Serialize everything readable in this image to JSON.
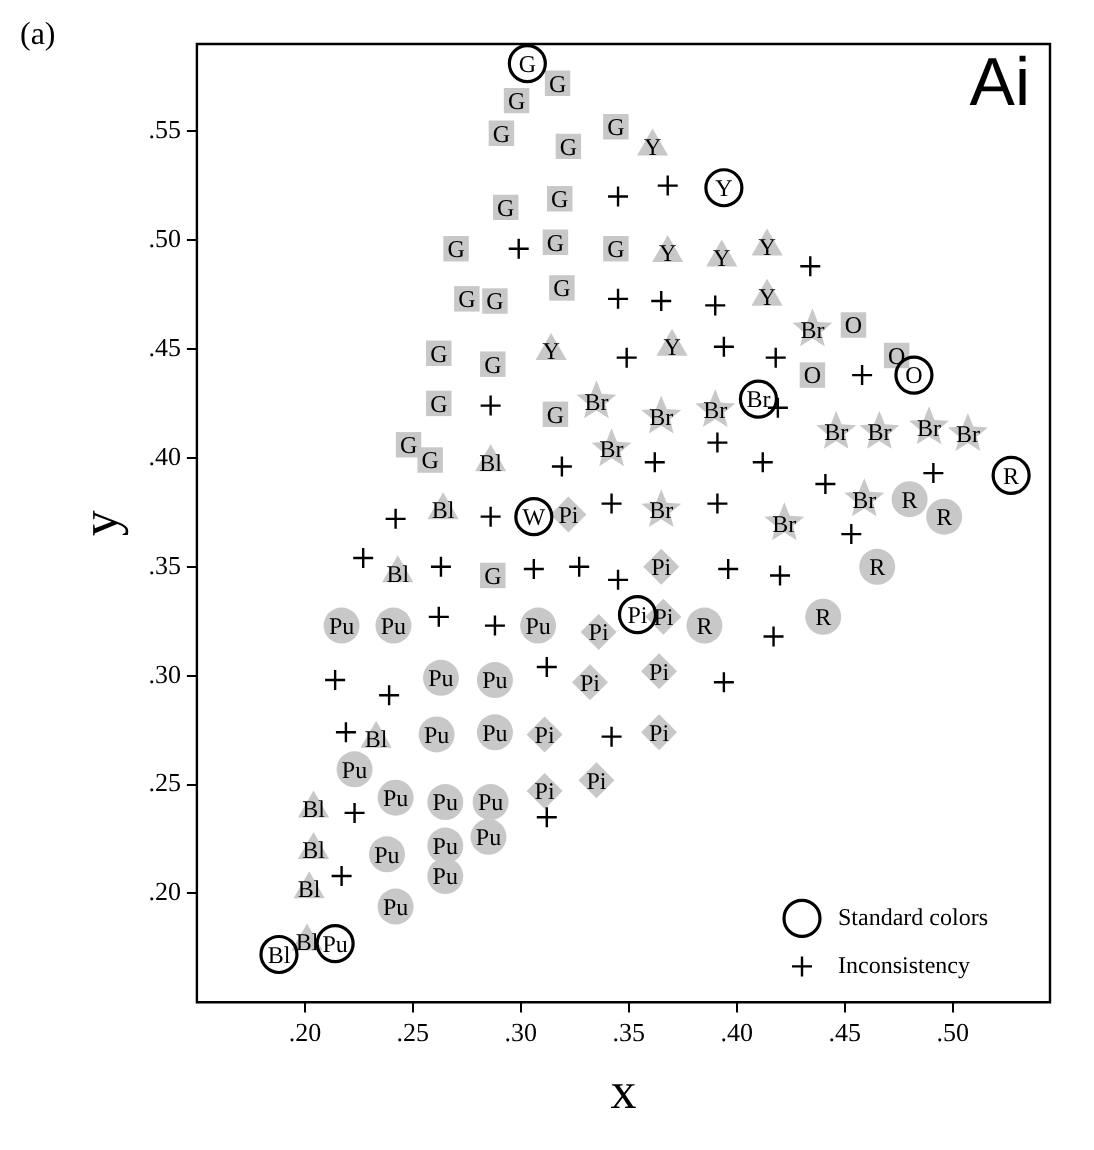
{
  "chart_data": {
    "type": "scatter",
    "title": "Ai",
    "xlabel": "x",
    "ylabel": "y",
    "xlim": [
      0.15,
      0.545
    ],
    "ylim": [
      0.15,
      0.59
    ],
    "xticks": [
      {
        "value": 0.2,
        "label": ".20"
      },
      {
        "value": 0.25,
        "label": ".25"
      },
      {
        "value": 0.3,
        "label": ".30"
      },
      {
        "value": 0.35,
        "label": ".35"
      },
      {
        "value": 0.4,
        "label": ".40"
      },
      {
        "value": 0.45,
        "label": ".45"
      },
      {
        "value": 0.5,
        "label": ".50"
      }
    ],
    "yticks": [
      {
        "value": 0.2,
        "label": ".20"
      },
      {
        "value": 0.25,
        "label": ".25"
      },
      {
        "value": 0.3,
        "label": ".30"
      },
      {
        "value": 0.35,
        "label": ".35"
      },
      {
        "value": 0.4,
        "label": ".40"
      },
      {
        "value": 0.45,
        "label": ".45"
      },
      {
        "value": 0.5,
        "label": ".50"
      },
      {
        "value": 0.55,
        "label": ".55"
      }
    ],
    "grid": false,
    "legend": "bottom right",
    "series": [
      {
        "color": "#c8c8c8",
        "marker": "square",
        "x": [
          0.291,
          0.317,
          0.298,
          0.322,
          0.344,
          0.293,
          0.318,
          0.27,
          0.275,
          0.288,
          0.316,
          0.344,
          0.262,
          0.287,
          0.319,
          0.262,
          0.248,
          0.258,
          0.316,
          0.287
        ],
        "values": [
          0.549,
          0.572,
          0.564,
          0.543,
          0.552,
          0.515,
          0.519,
          0.496,
          0.473,
          0.472,
          0.499,
          0.496,
          0.448,
          0.443,
          0.478,
          0.425,
          0.406,
          0.399,
          0.42,
          0.346
        ]
      },
      {
        "color": "#c8c8c8",
        "marker": "triangle",
        "x": [
          0.361,
          0.368,
          0.393,
          0.414,
          0.414,
          0.314,
          0.37
        ],
        "values": [
          0.543,
          0.494,
          0.492,
          0.497,
          0.474,
          0.449,
          0.451
        ]
      },
      {
        "color": "#c8c8c8",
        "marker": "star",
        "x": [
          0.335,
          0.365,
          0.39,
          0.342,
          0.365,
          0.435,
          0.446,
          0.466,
          0.489,
          0.507,
          0.459,
          0.422
        ],
        "values": [
          0.426,
          0.419,
          0.422,
          0.404,
          0.376,
          0.459,
          0.412,
          0.412,
          0.414,
          0.411,
          0.381,
          0.37
        ]
      },
      {
        "color": "#c8c8c8",
        "marker": "square",
        "x": [
          0.454,
          0.435,
          0.474
        ],
        "values": [
          0.461,
          0.438,
          0.447
        ]
      },
      {
        "color": "#c8c8c8",
        "marker": "circle",
        "x": [
          0.48,
          0.496,
          0.465,
          0.44,
          0.385
        ],
        "values": [
          0.381,
          0.373,
          0.35,
          0.327,
          0.323
        ]
      },
      {
        "color": "#c8c8c8",
        "marker": "diamond",
        "x": [
          0.322,
          0.365,
          0.336,
          0.366,
          0.332,
          0.364,
          0.311,
          0.364,
          0.335,
          0.311
        ],
        "values": [
          0.374,
          0.35,
          0.32,
          0.327,
          0.297,
          0.302,
          0.273,
          0.274,
          0.252,
          0.247
        ]
      },
      {
        "color": "#c8c8c8",
        "marker": "circle",
        "x": [
          0.308,
          0.217,
          0.241,
          0.263,
          0.288,
          0.261,
          0.288,
          0.223,
          0.242,
          0.265,
          0.286,
          0.238,
          0.265,
          0.285,
          0.265,
          0.242
        ],
        "values": [
          0.323,
          0.323,
          0.323,
          0.299,
          0.298,
          0.273,
          0.274,
          0.257,
          0.244,
          0.242,
          0.242,
          0.218,
          0.222,
          0.226,
          0.208,
          0.194
        ]
      },
      {
        "color": "#c8c8c8",
        "marker": "triangle",
        "x": [
          0.286,
          0.264,
          0.243,
          0.233,
          0.204,
          0.204,
          0.202,
          0.201
        ],
        "values": [
          0.398,
          0.376,
          0.347,
          0.271,
          0.239,
          0.22,
          0.202,
          0.178
        ]
      },
      {
        "name": "Standard colors",
        "color": "#000000",
        "marker": "circle",
        "x": [
          0.303,
          0.394,
          0.41,
          0.482,
          0.527,
          0.306,
          0.354,
          0.214,
          0.188
        ],
        "values": [
          0.581,
          0.524,
          0.427,
          0.438,
          0.392,
          0.373,
          0.328,
          0.177,
          0.172
        ]
      },
      {
        "name": "Inconsistency",
        "color": "#000000",
        "marker": "cross",
        "x": [
          0.286,
          0.242,
          0.286,
          0.345,
          0.368,
          0.299,
          0.345,
          0.365,
          0.39,
          0.434,
          0.349,
          0.394,
          0.418,
          0.419,
          0.319,
          0.362,
          0.391,
          0.412,
          0.342,
          0.391,
          0.458,
          0.491,
          0.441,
          0.453,
          0.42,
          0.417,
          0.306,
          0.327,
          0.345,
          0.396,
          0.288,
          0.312,
          0.394,
          0.342,
          0.312,
          0.227,
          0.263,
          0.262,
          0.214,
          0.239,
          0.219,
          0.223,
          0.217
        ],
        "values": [
          0.424,
          0.372,
          0.373,
          0.52,
          0.525,
          0.496,
          0.473,
          0.472,
          0.47,
          0.488,
          0.446,
          0.451,
          0.446,
          0.423,
          0.396,
          0.398,
          0.407,
          0.398,
          0.379,
          0.379,
          0.438,
          0.393,
          0.388,
          0.365,
          0.346,
          0.318,
          0.349,
          0.35,
          0.344,
          0.349,
          0.323,
          0.304,
          0.297,
          0.272,
          0.235,
          0.354,
          0.35,
          0.327,
          0.298,
          0.291,
          0.274,
          0.237,
          0.208
        ]
      }
    ],
    "annotations": [
      "(a)",
      {
        "text": "G",
        "x": 0.291,
        "y": 0.549
      },
      {
        "text": "G",
        "x": 0.317,
        "y": 0.572
      },
      {
        "text": "G",
        "x": 0.298,
        "y": 0.564
      },
      {
        "text": "G",
        "x": 0.322,
        "y": 0.543
      },
      {
        "text": "G",
        "x": 0.344,
        "y": 0.552
      },
      {
        "text": "G",
        "x": 0.293,
        "y": 0.515
      },
      {
        "text": "G",
        "x": 0.318,
        "y": 0.519
      },
      {
        "text": "G",
        "x": 0.27,
        "y": 0.496
      },
      {
        "text": "G",
        "x": 0.275,
        "y": 0.473
      },
      {
        "text": "G",
        "x": 0.288,
        "y": 0.472
      },
      {
        "text": "G",
        "x": 0.316,
        "y": 0.499
      },
      {
        "text": "G",
        "x": 0.344,
        "y": 0.496
      },
      {
        "text": "G",
        "x": 0.262,
        "y": 0.448
      },
      {
        "text": "G",
        "x": 0.287,
        "y": 0.443
      },
      {
        "text": "G",
        "x": 0.319,
        "y": 0.478
      },
      {
        "text": "G",
        "x": 0.262,
        "y": 0.425
      },
      {
        "text": "G",
        "x": 0.248,
        "y": 0.406
      },
      {
        "text": "G",
        "x": 0.258,
        "y": 0.399
      },
      {
        "text": "G",
        "x": 0.316,
        "y": 0.42
      },
      {
        "text": "G",
        "x": 0.287,
        "y": 0.346
      },
      {
        "text": "Y",
        "x": 0.361,
        "y": 0.543
      },
      {
        "text": "Y",
        "x": 0.368,
        "y": 0.494
      },
      {
        "text": "Y",
        "x": 0.393,
        "y": 0.492
      },
      {
        "text": "Y",
        "x": 0.414,
        "y": 0.497
      },
      {
        "text": "Y",
        "x": 0.414,
        "y": 0.474
      },
      {
        "text": "Y",
        "x": 0.314,
        "y": 0.449
      },
      {
        "text": "Y",
        "x": 0.37,
        "y": 0.451
      },
      {
        "text": "Br",
        "x": 0.335,
        "y": 0.426
      },
      {
        "text": "Br",
        "x": 0.365,
        "y": 0.419
      },
      {
        "text": "Br",
        "x": 0.39,
        "y": 0.422
      },
      {
        "text": "Br",
        "x": 0.342,
        "y": 0.404
      },
      {
        "text": "Br",
        "x": 0.365,
        "y": 0.376
      },
      {
        "text": "Br",
        "x": 0.435,
        "y": 0.459
      },
      {
        "text": "Br",
        "x": 0.446,
        "y": 0.412
      },
      {
        "text": "Br",
        "x": 0.466,
        "y": 0.412
      },
      {
        "text": "Br",
        "x": 0.489,
        "y": 0.414
      },
      {
        "text": "Br",
        "x": 0.507,
        "y": 0.411
      },
      {
        "text": "Br",
        "x": 0.459,
        "y": 0.381
      },
      {
        "text": "Br",
        "x": 0.422,
        "y": 0.37
      },
      {
        "text": "O",
        "x": 0.454,
        "y": 0.461
      },
      {
        "text": "O",
        "x": 0.435,
        "y": 0.438
      },
      {
        "text": "O",
        "x": 0.474,
        "y": 0.447
      },
      {
        "text": "R",
        "x": 0.48,
        "y": 0.381
      },
      {
        "text": "R",
        "x": 0.496,
        "y": 0.373
      },
      {
        "text": "R",
        "x": 0.465,
        "y": 0.35
      },
      {
        "text": "R",
        "x": 0.44,
        "y": 0.327
      },
      {
        "text": "R",
        "x": 0.385,
        "y": 0.323
      },
      {
        "text": "Pi",
        "x": 0.322,
        "y": 0.374
      },
      {
        "text": "Pi",
        "x": 0.365,
        "y": 0.35
      },
      {
        "text": "Pi",
        "x": 0.336,
        "y": 0.32
      },
      {
        "text": "Pi",
        "x": 0.366,
        "y": 0.327
      },
      {
        "text": "Pi",
        "x": 0.332,
        "y": 0.297
      },
      {
        "text": "Pi",
        "x": 0.364,
        "y": 0.302
      },
      {
        "text": "Pi",
        "x": 0.311,
        "y": 0.273
      },
      {
        "text": "Pi",
        "x": 0.364,
        "y": 0.274
      },
      {
        "text": "Pi",
        "x": 0.335,
        "y": 0.252
      },
      {
        "text": "Pi",
        "x": 0.311,
        "y": 0.247
      },
      {
        "text": "Pu",
        "x": 0.308,
        "y": 0.323
      },
      {
        "text": "Pu",
        "x": 0.217,
        "y": 0.323
      },
      {
        "text": "Pu",
        "x": 0.241,
        "y": 0.323
      },
      {
        "text": "Pu",
        "x": 0.263,
        "y": 0.299
      },
      {
        "text": "Pu",
        "x": 0.288,
        "y": 0.298
      },
      {
        "text": "Pu",
        "x": 0.261,
        "y": 0.273
      },
      {
        "text": "Pu",
        "x": 0.288,
        "y": 0.274
      },
      {
        "text": "Pu",
        "x": 0.223,
        "y": 0.257
      },
      {
        "text": "Pu",
        "x": 0.242,
        "y": 0.244
      },
      {
        "text": "Pu",
        "x": 0.265,
        "y": 0.242
      },
      {
        "text": "Pu",
        "x": 0.286,
        "y": 0.242
      },
      {
        "text": "Pu",
        "x": 0.238,
        "y": 0.218
      },
      {
        "text": "Pu",
        "x": 0.265,
        "y": 0.222
      },
      {
        "text": "Pu",
        "x": 0.285,
        "y": 0.226
      },
      {
        "text": "Pu",
        "x": 0.265,
        "y": 0.208
      },
      {
        "text": "Pu",
        "x": 0.242,
        "y": 0.194
      },
      {
        "text": "Bl",
        "x": 0.286,
        "y": 0.398
      },
      {
        "text": "Bl",
        "x": 0.264,
        "y": 0.376
      },
      {
        "text": "Bl",
        "x": 0.243,
        "y": 0.347
      },
      {
        "text": "Bl",
        "x": 0.233,
        "y": 0.271
      },
      {
        "text": "Bl",
        "x": 0.204,
        "y": 0.239
      },
      {
        "text": "Bl",
        "x": 0.204,
        "y": 0.22
      },
      {
        "text": "Bl",
        "x": 0.202,
        "y": 0.202
      },
      {
        "text": "Bl",
        "x": 0.201,
        "y": 0.178
      },
      {
        "text": "G",
        "x": 0.303,
        "y": 0.581
      },
      {
        "text": "Y",
        "x": 0.394,
        "y": 0.524
      },
      {
        "text": "Br",
        "x": 0.41,
        "y": 0.427
      },
      {
        "text": "O",
        "x": 0.482,
        "y": 0.438
      },
      {
        "text": "R",
        "x": 0.527,
        "y": 0.392
      },
      {
        "text": "W",
        "x": 0.306,
        "y": 0.373
      },
      {
        "text": "Pi",
        "x": 0.354,
        "y": 0.328
      },
      {
        "text": "Pu",
        "x": 0.214,
        "y": 0.177
      },
      {
        "text": "Bl",
        "x": 0.188,
        "y": 0.172
      }
    ]
  }
}
